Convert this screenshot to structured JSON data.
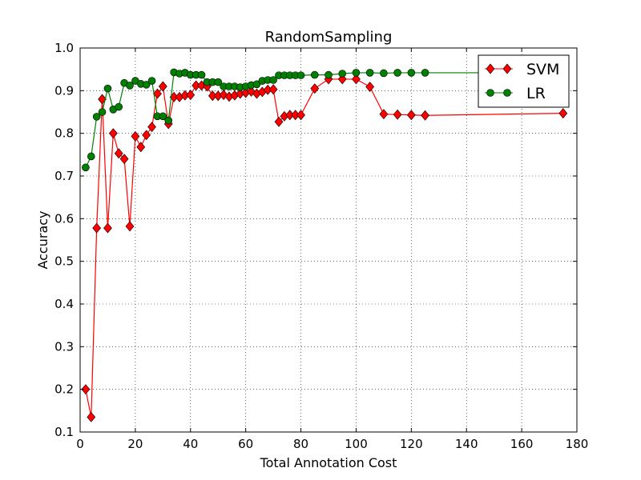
{
  "chart_data": {
    "type": "line",
    "title": "RandomSampling",
    "xlabel": "Total Annotation Cost",
    "ylabel": "Accuracy",
    "xlim": [
      0,
      180
    ],
    "ylim": [
      0.1,
      1.0
    ],
    "xticks": [
      0,
      20,
      40,
      60,
      80,
      100,
      120,
      140,
      160,
      180
    ],
    "yticks": [
      0.1,
      0.2,
      0.3,
      0.4,
      0.5,
      0.6,
      0.7,
      0.8,
      0.9,
      1.0
    ],
    "xtick_labels": [
      "0",
      "20",
      "40",
      "60",
      "80",
      "100",
      "120",
      "140",
      "160",
      "180"
    ],
    "ytick_labels": [
      "0.1",
      "0.2",
      "0.3",
      "0.4",
      "0.5",
      "0.6",
      "0.7",
      "0.8",
      "0.9",
      "1.0"
    ],
    "grid": true,
    "legend_position": "top-right",
    "series": [
      {
        "name": "SVM",
        "color": "#ff0000",
        "marker": "diamond",
        "x": [
          2,
          4,
          6,
          8,
          10,
          12,
          14,
          16,
          18,
          20,
          22,
          24,
          26,
          28,
          30,
          32,
          34,
          36,
          38,
          40,
          42,
          44,
          46,
          48,
          50,
          52,
          54,
          56,
          58,
          60,
          62,
          64,
          66,
          68,
          70,
          72,
          74,
          76,
          78,
          80,
          85,
          90,
          95,
          100,
          105,
          110,
          115,
          120,
          125,
          175
        ],
        "y": [
          0.2,
          0.135,
          0.578,
          0.88,
          0.578,
          0.8,
          0.753,
          0.74,
          0.582,
          0.793,
          0.768,
          0.796,
          0.815,
          0.893,
          0.91,
          0.822,
          0.885,
          0.885,
          0.889,
          0.89,
          0.912,
          0.912,
          0.91,
          0.888,
          0.888,
          0.89,
          0.886,
          0.889,
          0.893,
          0.895,
          0.898,
          0.893,
          0.897,
          0.902,
          0.903,
          0.827,
          0.84,
          0.843,
          0.843,
          0.843,
          0.905,
          0.927,
          0.927,
          0.927,
          0.909,
          0.845,
          0.844,
          0.843,
          0.842,
          0.847
        ]
      },
      {
        "name": "LR",
        "color": "#008000",
        "marker": "circle",
        "x": [
          2,
          4,
          6,
          8,
          10,
          12,
          14,
          16,
          18,
          20,
          22,
          24,
          26,
          28,
          30,
          32,
          34,
          36,
          38,
          40,
          42,
          44,
          46,
          48,
          50,
          52,
          54,
          56,
          58,
          60,
          62,
          64,
          66,
          68,
          70,
          72,
          74,
          76,
          78,
          80,
          85,
          90,
          95,
          100,
          105,
          110,
          115,
          120,
          125,
          175
        ],
        "y": [
          0.72,
          0.746,
          0.839,
          0.85,
          0.905,
          0.856,
          0.862,
          0.918,
          0.912,
          0.923,
          0.916,
          0.914,
          0.923,
          0.84,
          0.84,
          0.83,
          0.943,
          0.94,
          0.942,
          0.937,
          0.937,
          0.937,
          0.92,
          0.92,
          0.92,
          0.91,
          0.91,
          0.91,
          0.908,
          0.91,
          0.913,
          0.915,
          0.923,
          0.925,
          0.925,
          0.936,
          0.936,
          0.936,
          0.936,
          0.936,
          0.937,
          0.937,
          0.94,
          0.942,
          0.942,
          0.941,
          0.942,
          0.942,
          0.942,
          0.942
        ]
      }
    ]
  }
}
